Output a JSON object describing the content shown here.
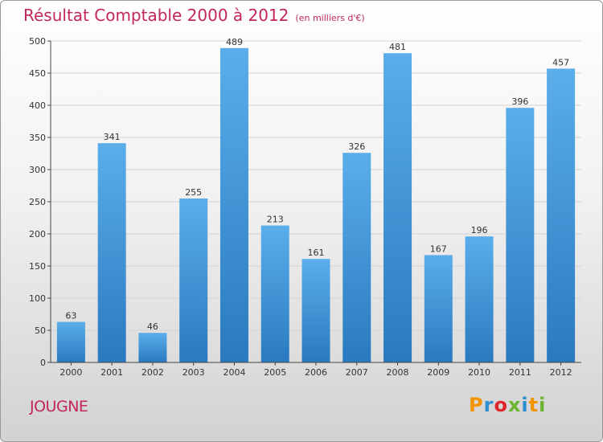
{
  "chart_data": {
    "type": "bar",
    "title": "Résultat Comptable 2000 à 2012",
    "subtitle": "(en milliers d'€)",
    "categories": [
      "2000",
      "2001",
      "2002",
      "2003",
      "2004",
      "2005",
      "2006",
      "2007",
      "2008",
      "2009",
      "2010",
      "2011",
      "2012"
    ],
    "values": [
      63,
      341,
      46,
      255,
      489,
      213,
      161,
      326,
      481,
      167,
      196,
      396,
      457
    ],
    "ylim": [
      0,
      500
    ],
    "yticks": [
      0,
      50,
      100,
      150,
      200,
      250,
      300,
      350,
      400,
      450,
      500
    ],
    "xlabel": "",
    "ylabel": "",
    "grid": true,
    "bar_color": "#3d8fd6",
    "bar_color_light": "#5aaeea",
    "bar_color_dark": "#2a79bf"
  },
  "location": {
    "name": "JOUGNE"
  },
  "brand": {
    "letters": [
      "P",
      "r",
      "o",
      "x",
      "i",
      "t",
      "i"
    ],
    "colors": [
      "#f29400",
      "#2b8fd2",
      "#e0262b",
      "#6bb42f",
      "#2b8fd2",
      "#f29400",
      "#6bb42f"
    ]
  },
  "colors": {
    "title": "#c1275a",
    "grid": "#d3d3d3",
    "axis": "#444444"
  }
}
